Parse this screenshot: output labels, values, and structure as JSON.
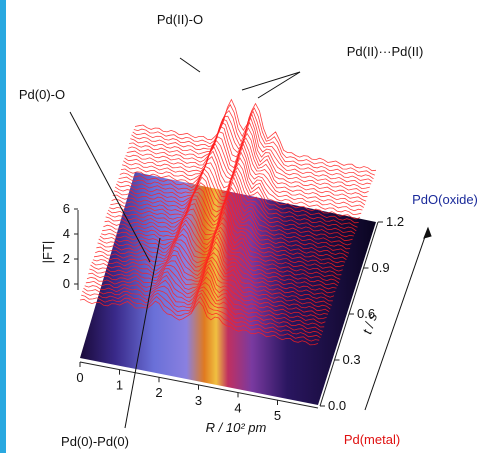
{
  "figure": {
    "annotations": {
      "pd2_o": "Pd(II)-O",
      "pd2_pd2": "Pd(II)···Pd(II)",
      "pd0_o": "Pd(0)-O",
      "pd0_pd0": "Pd(0)-Pd(0)",
      "oxide": "PdO(oxide)",
      "metal": "Pd(metal)"
    },
    "z_axis": {
      "label": "|FT|",
      "ticks": [
        "6",
        "4",
        "2",
        "0"
      ]
    },
    "r_axis": {
      "label": "R / 10² pm",
      "ticks": [
        "0",
        "1",
        "2",
        "3",
        "4",
        "5"
      ]
    },
    "t_axis": {
      "label": "t / s",
      "ticks": [
        "0.0",
        "0.3",
        "0.6",
        "0.9",
        "1.2"
      ]
    }
  }
}
